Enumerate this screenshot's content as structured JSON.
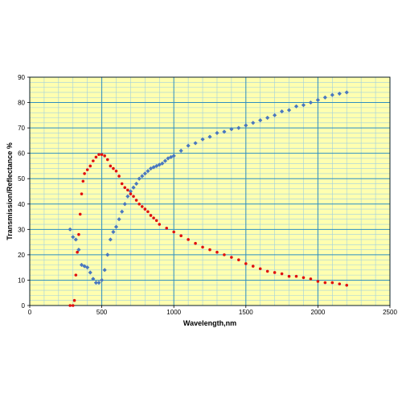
{
  "chart_data": {
    "type": "scatter",
    "xlabel": "Wavelength,nm",
    "ylabel": "Transmission/Reflectance %",
    "xlim": [
      0,
      2500
    ],
    "ylim": [
      0,
      90
    ],
    "x_ticks": [
      0,
      500,
      1000,
      1500,
      2000,
      2500
    ],
    "y_ticks": [
      0,
      10,
      20,
      30,
      40,
      50,
      60,
      70,
      80,
      90
    ],
    "grid": true,
    "legend": "none",
    "colors": {
      "plot_background": "#ffffb0",
      "major_grid": "#2f8fc0",
      "minor_grid": "#9fcfe0",
      "blue_series": "#4a78c0",
      "red_series": "#e01010"
    },
    "series": [
      {
        "color": "blue",
        "x": [
          280,
          300,
          320,
          340,
          360,
          380,
          400,
          420,
          440,
          460,
          480,
          500,
          520,
          540,
          560,
          580,
          600,
          620,
          640,
          660,
          680,
          700,
          720,
          740,
          760,
          780,
          800,
          820,
          840,
          860,
          880,
          900,
          920,
          940,
          960,
          980,
          1000,
          1050,
          1100,
          1150,
          1200,
          1250,
          1300,
          1350,
          1400,
          1450,
          1500,
          1550,
          1600,
          1650,
          1700,
          1750,
          1800,
          1850,
          1900,
          1950,
          2000,
          2050,
          2100,
          2150,
          2200
        ],
        "y": [
          30,
          27,
          26,
          22,
          16,
          15.5,
          15,
          13,
          10.5,
          9,
          9,
          10,
          14,
          20,
          26,
          29,
          31,
          34,
          37,
          40,
          43,
          45,
          46.5,
          48,
          50,
          51,
          52,
          53,
          54,
          54.5,
          55,
          55.5,
          56,
          57,
          58,
          58.5,
          59,
          61,
          63,
          64,
          65.5,
          66.5,
          68,
          68.5,
          69.5,
          70,
          71,
          72,
          73,
          74,
          75,
          76.5,
          77,
          78.5,
          79,
          80,
          81,
          82,
          83,
          83.5,
          84
        ]
      },
      {
        "color": "red",
        "x": [
          280,
          300,
          310,
          320,
          330,
          340,
          350,
          360,
          370,
          380,
          400,
          420,
          440,
          460,
          480,
          500,
          520,
          540,
          560,
          580,
          600,
          620,
          640,
          660,
          680,
          700,
          720,
          740,
          760,
          780,
          800,
          820,
          840,
          860,
          880,
          900,
          950,
          1000,
          1050,
          1100,
          1150,
          1200,
          1250,
          1300,
          1350,
          1400,
          1450,
          1500,
          1550,
          1600,
          1650,
          1700,
          1750,
          1800,
          1850,
          1900,
          1950,
          2000,
          2050,
          2100,
          2150,
          2200
        ],
        "y": [
          0,
          0,
          2,
          12,
          21,
          28,
          36,
          44,
          49,
          52,
          53.5,
          55,
          57,
          58.5,
          59.5,
          59.5,
          59,
          57.5,
          55,
          54,
          53,
          51,
          48,
          46.5,
          45.5,
          44,
          43,
          41.5,
          40,
          39,
          38,
          37,
          35.5,
          34.5,
          33.5,
          32,
          30.5,
          29,
          27.5,
          26,
          24.5,
          23,
          22,
          21,
          20,
          19,
          18,
          16.5,
          15.5,
          14.5,
          13.5,
          13,
          12.5,
          11.5,
          11.5,
          11,
          10.5,
          9.5,
          9,
          9,
          8.5,
          8
        ]
      }
    ]
  }
}
